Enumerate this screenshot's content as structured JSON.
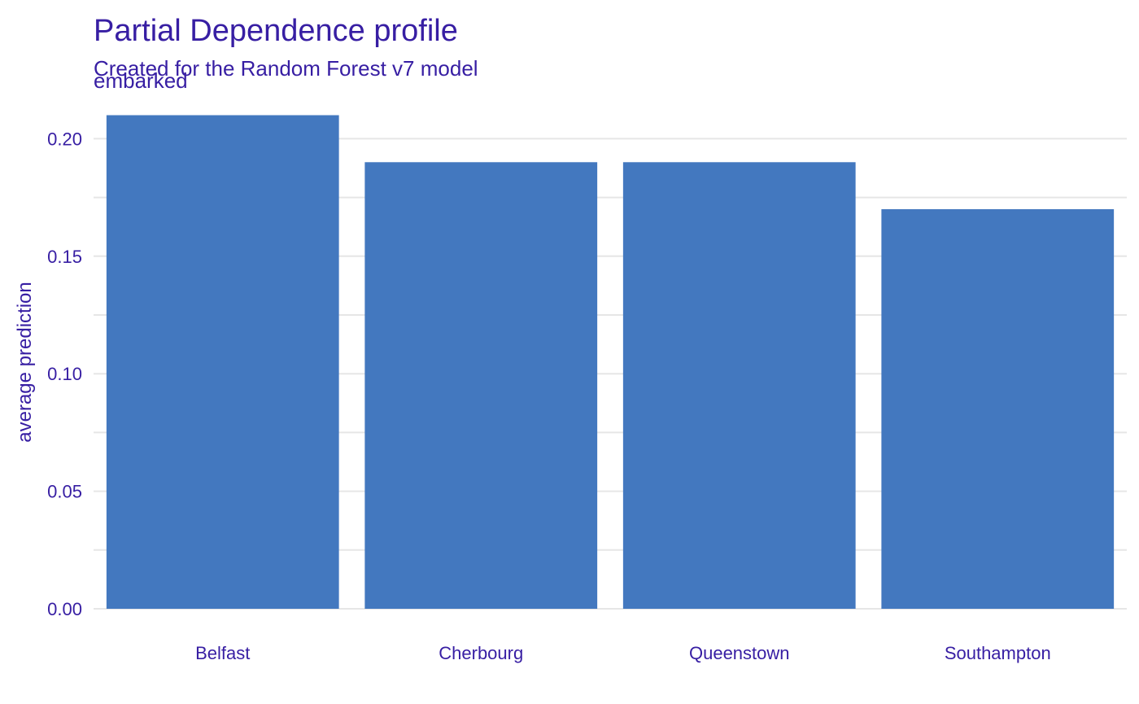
{
  "colors": {
    "text": "#371ea3",
    "bar": "#4378bf",
    "grid": "#e6e6e6",
    "background": "#ffffff"
  },
  "chart_data": {
    "type": "bar",
    "title": "Partial Dependence profile",
    "subtitle": "Created for the Random Forest v7 model",
    "facet_label": "embarked",
    "xlabel": "",
    "ylabel": "average prediction",
    "categories": [
      "Belfast",
      "Cherbourg",
      "Queenstown",
      "Southampton"
    ],
    "values": [
      0.21,
      0.19,
      0.19,
      0.17
    ],
    "ylim": [
      0,
      0.21
    ],
    "y_ticks": [
      "0.00",
      "0.05",
      "0.10",
      "0.15",
      "0.20"
    ],
    "grid": true,
    "legend": "none"
  }
}
